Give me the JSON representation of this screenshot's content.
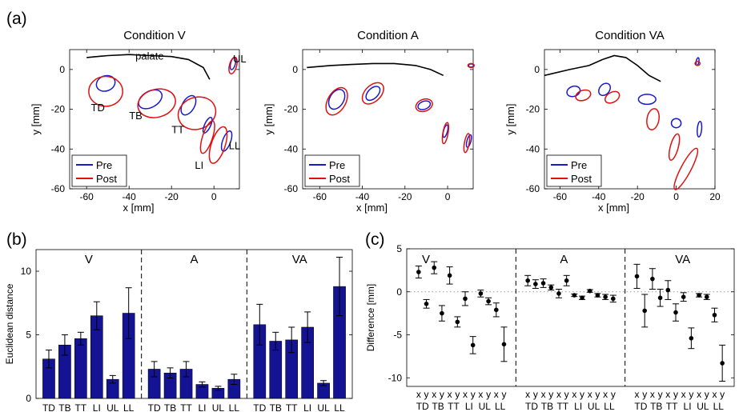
{
  "panel_labels": {
    "a": "(a)",
    "b": "(b)",
    "c": "(c)"
  },
  "chart_data": [
    {
      "type": "scatter",
      "title": "Condition V",
      "xlabel": "x [mm]",
      "ylabel": "y [mm]",
      "xlim": [
        -68,
        12
      ],
      "ylim": [
        -60,
        10
      ],
      "xticks": [
        "-60",
        "-40",
        "-20",
        "0"
      ],
      "yticks": [
        "0",
        "-20",
        "-40",
        "-60"
      ],
      "legend": {
        "placement": "bottom-left",
        "entries": [
          "Pre",
          "Post"
        ]
      },
      "annotations": [
        "palate",
        "UL",
        "TD",
        "TB",
        "TT",
        "LI",
        "LL"
      ],
      "palate": [
        [
          -60,
          6
        ],
        [
          -50,
          7
        ],
        [
          -40,
          7.5
        ],
        [
          -30,
          7
        ],
        [
          -20,
          6.5
        ],
        [
          -12,
          5
        ],
        [
          -5,
          1
        ],
        [
          -2,
          -5
        ]
      ],
      "ellipses": [
        {
          "series": "Pre",
          "cx": -51,
          "cy": -7,
          "rx": 4.5,
          "ry": 3.8,
          "angle": -20
        },
        {
          "series": "Post",
          "cx": -51,
          "cy": -11,
          "rx": 8,
          "ry": 7.5,
          "angle": 0
        },
        {
          "series": "Pre",
          "cx": -30,
          "cy": -15,
          "rx": 6,
          "ry": 4,
          "angle": -30
        },
        {
          "series": "Post",
          "cx": -27,
          "cy": -17,
          "rx": 9,
          "ry": 7,
          "angle": -15
        },
        {
          "series": "Pre",
          "cx": -12,
          "cy": -18,
          "rx": 5,
          "ry": 3,
          "angle": -60
        },
        {
          "series": "Post",
          "cx": -8,
          "cy": -22,
          "rx": 9,
          "ry": 8,
          "angle": -20
        },
        {
          "series": "Pre",
          "cx": -3,
          "cy": -28,
          "rx": 4,
          "ry": 1.5,
          "angle": -65
        },
        {
          "series": "Post",
          "cx": -3,
          "cy": -34,
          "rx": 8,
          "ry": 2.5,
          "angle": -72
        },
        {
          "series": "Pre",
          "cx": 6,
          "cy": -36,
          "rx": 5,
          "ry": 2,
          "angle": -70
        },
        {
          "series": "Post",
          "cx": 2,
          "cy": -38,
          "rx": 9,
          "ry": 3.5,
          "angle": -72
        },
        {
          "series": "Pre",
          "cx": 9,
          "cy": 3,
          "rx": 3,
          "ry": 1.2,
          "angle": -75
        },
        {
          "series": "Post",
          "cx": 9,
          "cy": 2,
          "rx": 4,
          "ry": 1.8,
          "angle": -75
        }
      ]
    },
    {
      "type": "scatter",
      "title": "Condition A",
      "xlabel": "x [mm]",
      "ylabel": "y [mm]",
      "xlim": [
        -68,
        12
      ],
      "ylim": [
        -60,
        10
      ],
      "xticks": [
        "-60",
        "-40",
        "-20",
        "0"
      ],
      "yticks": [
        "0",
        "-20",
        "-40",
        "-60"
      ],
      "legend": {
        "placement": "bottom-left",
        "entries": [
          "Pre",
          "Post"
        ]
      },
      "palate": [
        [
          -66,
          1
        ],
        [
          -55,
          2
        ],
        [
          -45,
          2.5
        ],
        [
          -35,
          3
        ],
        [
          -25,
          3
        ],
        [
          -15,
          2
        ],
        [
          -8,
          0
        ],
        [
          -2,
          -3
        ]
      ],
      "ellipses": [
        {
          "series": "Pre",
          "cx": -52,
          "cy": -15,
          "rx": 5,
          "ry": 3.5,
          "angle": -60
        },
        {
          "series": "Post",
          "cx": -52,
          "cy": -16,
          "rx": 7,
          "ry": 4.5,
          "angle": -60
        },
        {
          "series": "Pre",
          "cx": -35,
          "cy": -12,
          "rx": 4,
          "ry": 2.5,
          "angle": -45
        },
        {
          "series": "Post",
          "cx": -35,
          "cy": -12,
          "rx": 6,
          "ry": 4,
          "angle": -45
        },
        {
          "series": "Pre",
          "cx": -11,
          "cy": -18,
          "rx": 3,
          "ry": 2,
          "angle": -20
        },
        {
          "series": "Post",
          "cx": -11,
          "cy": -18,
          "rx": 4,
          "ry": 3,
          "angle": -20
        },
        {
          "series": "Pre",
          "cx": -1,
          "cy": -31,
          "rx": 3,
          "ry": 1,
          "angle": -75
        },
        {
          "series": "Post",
          "cx": -1,
          "cy": -32,
          "rx": 5,
          "ry": 1.3,
          "angle": -80
        },
        {
          "series": "Pre",
          "cx": 10,
          "cy": -36,
          "rx": 3,
          "ry": 1,
          "angle": -75
        },
        {
          "series": "Post",
          "cx": 9,
          "cy": -37,
          "rx": 4.5,
          "ry": 1.2,
          "angle": -80
        },
        {
          "series": "Pre",
          "cx": 11,
          "cy": 2,
          "rx": 1.2,
          "ry": 0.8,
          "angle": 0
        },
        {
          "series": "Post",
          "cx": 11,
          "cy": 2,
          "rx": 1.5,
          "ry": 1,
          "angle": 0
        }
      ]
    },
    {
      "type": "scatter",
      "title": "Condition VA",
      "xlabel": "x [mm]",
      "ylabel": "y [mm]",
      "xlim": [
        -68,
        20
      ],
      "ylim": [
        -60,
        10
      ],
      "xticks": [
        "-60",
        "-40",
        "-20",
        "0",
        "20"
      ],
      "yticks": [
        "0",
        "-20",
        "-40",
        "-60"
      ],
      "legend": {
        "placement": "bottom-left",
        "entries": [
          "Pre",
          "Post"
        ]
      },
      "palate": [
        [
          -68,
          -3
        ],
        [
          -55,
          0
        ],
        [
          -45,
          2
        ],
        [
          -38,
          5
        ],
        [
          -32,
          7
        ],
        [
          -26,
          6
        ],
        [
          -20,
          2
        ],
        [
          -14,
          -3
        ],
        [
          -8,
          -6
        ]
      ],
      "ellipses": [
        {
          "series": "Pre",
          "cx": -53,
          "cy": -11,
          "rx": 3.5,
          "ry": 2.5,
          "angle": -20
        },
        {
          "series": "Post",
          "cx": -48,
          "cy": -13,
          "rx": 4,
          "ry": 2.5,
          "angle": -20
        },
        {
          "series": "Pre",
          "cx": -37,
          "cy": -10,
          "rx": 3.5,
          "ry": 2.5,
          "angle": -50
        },
        {
          "series": "Post",
          "cx": -33,
          "cy": -14,
          "rx": 4,
          "ry": 2.5,
          "angle": -30
        },
        {
          "series": "Pre",
          "cx": -15,
          "cy": -15,
          "rx": 4.5,
          "ry": 2.5,
          "angle": 0
        },
        {
          "series": "Post",
          "cx": -12,
          "cy": -25,
          "rx": 5.5,
          "ry": 3,
          "angle": -80
        },
        {
          "series": "Pre",
          "cx": 0,
          "cy": -27,
          "rx": 2.5,
          "ry": 2.3,
          "angle": 0
        },
        {
          "series": "Post",
          "cx": -1,
          "cy": -39,
          "rx": 7,
          "ry": 2,
          "angle": -75
        },
        {
          "series": "Pre",
          "cx": 12,
          "cy": -30,
          "rx": 4,
          "ry": 1.1,
          "angle": -85
        },
        {
          "series": "Post",
          "cx": 5,
          "cy": -50,
          "rx": 12,
          "ry": 2.5,
          "angle": -62
        },
        {
          "series": "Pre",
          "cx": 11,
          "cy": 4,
          "rx": 2,
          "ry": 0.7,
          "angle": -80
        },
        {
          "series": "Post",
          "cx": 11,
          "cy": 3,
          "rx": 1.3,
          "ry": 1,
          "angle": 0
        }
      ]
    },
    {
      "type": "bar",
      "ylabel": "Euclidean distance",
      "ylim": [
        0,
        11.7
      ],
      "yticks": [
        "0",
        "5",
        "10"
      ],
      "groups": [
        {
          "name": "V",
          "categories": [
            "TD",
            "TB",
            "TT",
            "LI",
            "UL",
            "LL"
          ],
          "values": [
            3.1,
            4.2,
            4.7,
            6.5,
            1.5,
            6.7
          ],
          "errors": [
            0.7,
            0.8,
            0.5,
            1.1,
            0.3,
            2.0
          ]
        },
        {
          "name": "A",
          "categories": [
            "TD",
            "TB",
            "TT",
            "LI",
            "UL",
            "LL"
          ],
          "values": [
            2.3,
            2.0,
            2.3,
            1.1,
            0.8,
            1.5
          ],
          "errors": [
            0.6,
            0.4,
            0.6,
            0.2,
            0.15,
            0.4
          ]
        },
        {
          "name": "VA",
          "categories": [
            "TD",
            "TB",
            "TT",
            "LI",
            "UL",
            "LL"
          ],
          "values": [
            5.8,
            4.5,
            4.6,
            5.6,
            1.2,
            8.8
          ],
          "errors": [
            1.6,
            0.7,
            1.0,
            1.2,
            0.2,
            2.3
          ]
        }
      ]
    },
    {
      "type": "scatter",
      "ylabel": "Difference [mm]",
      "ylim": [
        -11,
        5
      ],
      "yticks": [
        "5",
        "0",
        "-5",
        "-10"
      ],
      "groups": [
        {
          "name": "V",
          "xlabels": [
            "x",
            "y",
            "x",
            "y",
            "x",
            "y",
            "x",
            "y",
            "x",
            "y",
            "x",
            "y"
          ],
          "articulators": [
            "TD",
            "TB",
            "TT",
            "LI",
            "UL",
            "LL"
          ],
          "values": [
            2.3,
            -1.4,
            2.8,
            -2.5,
            1.9,
            -3.5,
            -0.8,
            -6.2,
            -0.2,
            -1.1,
            -2.1,
            -6.1
          ],
          "errors": [
            0.7,
            0.5,
            0.7,
            0.9,
            1.0,
            0.6,
            0.8,
            1.0,
            0.4,
            0.4,
            0.8,
            2.0
          ]
        },
        {
          "name": "A",
          "xlabels": [
            "x",
            "y",
            "x",
            "y",
            "x",
            "y",
            "x",
            "y",
            "x",
            "y",
            "x",
            "y"
          ],
          "articulators": [
            "TD",
            "TB",
            "TT",
            "LI",
            "UL",
            "LL"
          ],
          "values": [
            1.3,
            0.9,
            1.0,
            0.5,
            -0.2,
            1.3,
            -0.4,
            -0.7,
            0.1,
            -0.4,
            -0.6,
            -0.8
          ],
          "errors": [
            0.6,
            0.5,
            0.5,
            0.3,
            0.5,
            0.6,
            0.15,
            0.2,
            0.15,
            0.2,
            0.3,
            0.4
          ]
        },
        {
          "name": "VA",
          "xlabels": [
            "x",
            "y",
            "x",
            "y",
            "x",
            "y",
            "x",
            "y",
            "x",
            "y",
            "x",
            "y"
          ],
          "articulators": [
            "TD",
            "TB",
            "TT",
            "LI",
            "UL",
            "LL"
          ],
          "values": [
            1.8,
            -2.2,
            1.5,
            -0.7,
            0.2,
            -2.4,
            -0.6,
            -5.4,
            -0.4,
            -0.6,
            -2.7,
            -8.3
          ],
          "errors": [
            1.4,
            1.9,
            1.2,
            1.0,
            1.1,
            1.0,
            0.5,
            1.2,
            0.2,
            0.3,
            0.8,
            2.1
          ]
        }
      ]
    }
  ]
}
